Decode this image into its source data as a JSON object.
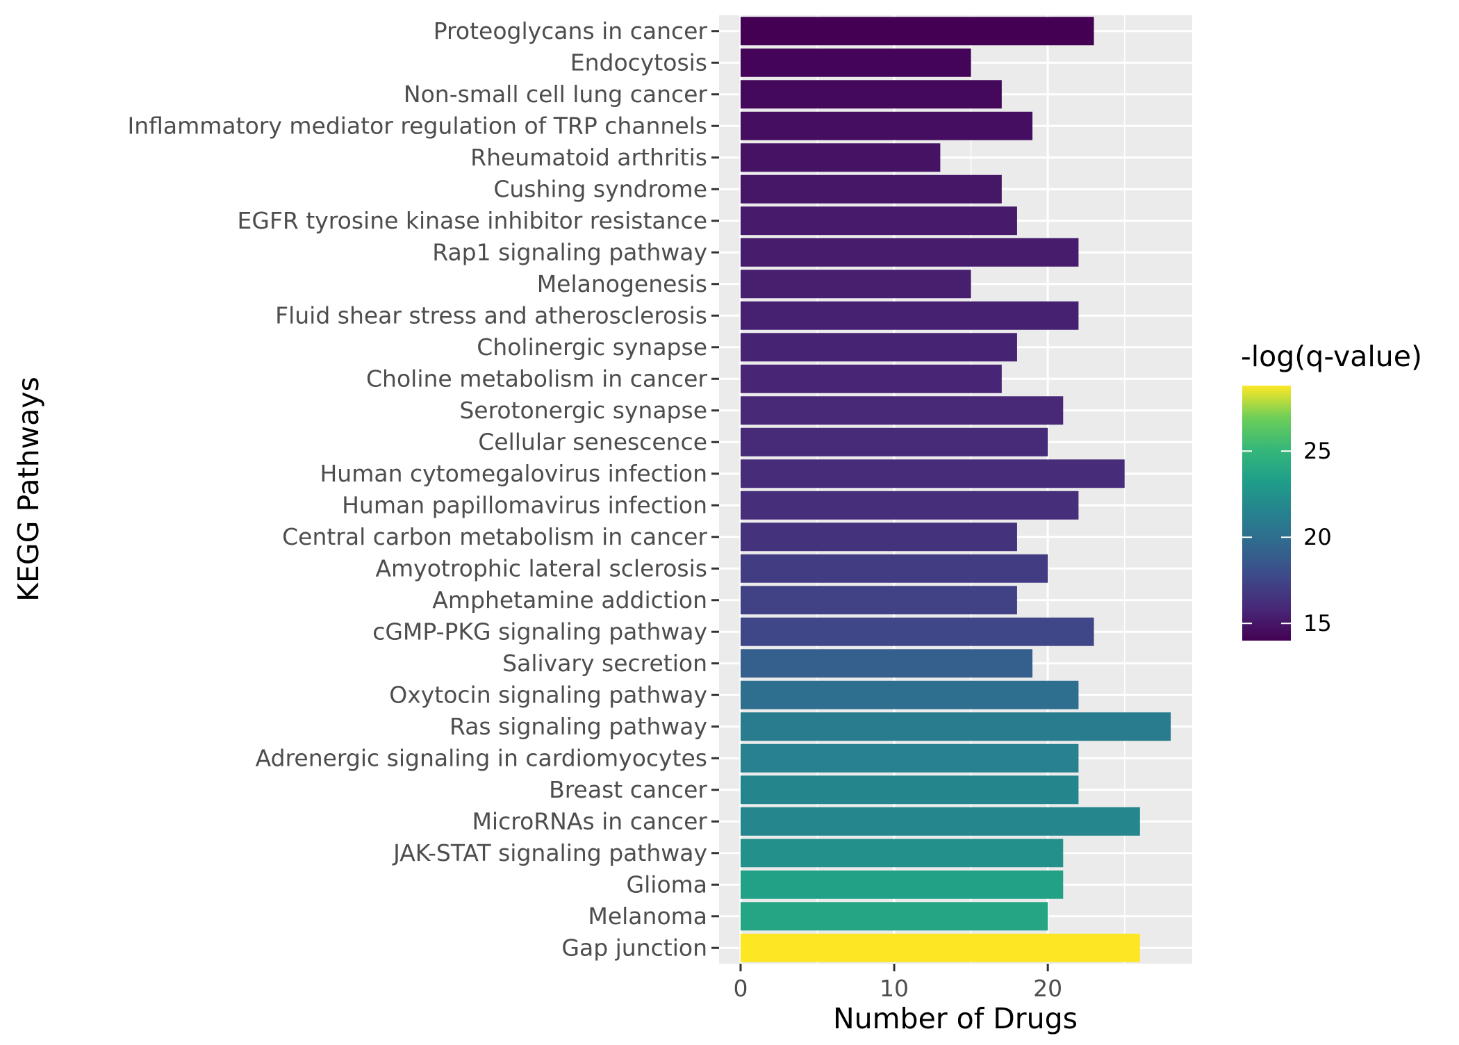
{
  "chart_data": {
    "type": "bar",
    "orientation": "horizontal",
    "xlabel": "Number of Drugs",
    "ylabel": "KEGG Pathways",
    "xlim": [
      -1.4,
      29.4
    ],
    "xticks": [
      0,
      10,
      20
    ],
    "grid": true,
    "legend": {
      "title": "-log(q-value)",
      "position": "right",
      "ticks": [
        15,
        20,
        25
      ],
      "range": [
        14,
        28.8
      ]
    },
    "categories": [
      "Proteoglycans in cancer",
      "Endocytosis",
      "Non-small cell lung cancer",
      "Inflammatory mediator regulation of TRP channels",
      "Rheumatoid arthritis",
      "Cushing syndrome",
      "EGFR tyrosine kinase inhibitor resistance",
      "Rap1 signaling pathway",
      "Melanogenesis",
      "Fluid shear stress and atherosclerosis",
      "Cholinergic synapse",
      "Choline metabolism in cancer",
      "Serotonergic synapse",
      "Cellular senescence",
      "Human cytomegalovirus infection",
      "Human papillomavirus infection",
      "Central carbon metabolism in cancer",
      "Amyotrophic lateral sclerosis",
      "Amphetamine addiction",
      "cGMP-PKG signaling pathway",
      "Salivary secretion",
      "Oxytocin signaling pathway",
      "Ras signaling pathway",
      "Adrenergic signaling in cardiomyocytes",
      "Breast cancer",
      "MicroRNAs in cancer",
      "JAK-STAT signaling pathway",
      "Glioma",
      "Melanoma",
      "Gap junction"
    ],
    "values": [
      23,
      15,
      17,
      19,
      13,
      17,
      18,
      22,
      15,
      22,
      18,
      17,
      21,
      20,
      25,
      22,
      18,
      20,
      18,
      23,
      19,
      22,
      28,
      22,
      22,
      26,
      21,
      21,
      20,
      26
    ],
    "neg_log_q": [
      14.0,
      14.2,
      14.4,
      14.6,
      14.8,
      15.0,
      15.2,
      15.3,
      15.4,
      15.5,
      15.6,
      15.7,
      15.9,
      16.0,
      16.1,
      16.2,
      16.4,
      17.0,
      17.3,
      17.6,
      19.0,
      20.0,
      21.0,
      21.3,
      21.6,
      21.7,
      22.3,
      23.5,
      23.8,
      28.8
    ]
  }
}
